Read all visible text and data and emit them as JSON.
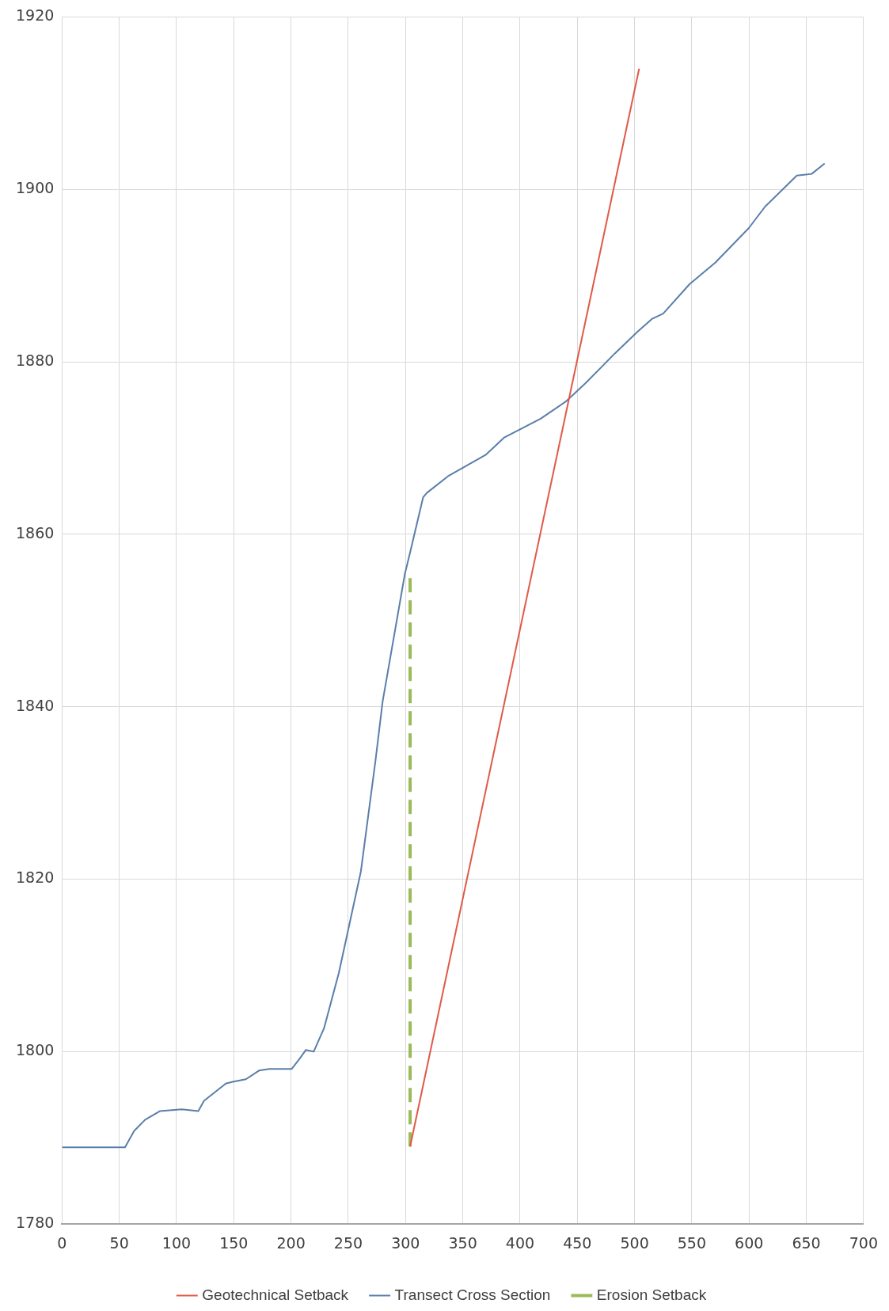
{
  "chart_data": {
    "type": "line",
    "xlim": [
      0,
      700
    ],
    "xticks": [
      0,
      50,
      100,
      150,
      200,
      250,
      300,
      350,
      400,
      450,
      500,
      550,
      600,
      650,
      700
    ],
    "ylim": [
      1780,
      1920
    ],
    "yticks": [
      1780,
      1800,
      1820,
      1840,
      1860,
      1880,
      1900,
      1920
    ],
    "grid": true,
    "legend": "bottom",
    "marker": "none",
    "series": [
      {
        "name": "Geotechnical Setback",
        "color": "#e05a47",
        "line_style": "solid",
        "x": [
          304,
          504
        ],
        "values": [
          1789,
          1914
        ]
      },
      {
        "name": "Transect Cross Section",
        "color": "#5a7eaa",
        "line_style": "solid",
        "x": [
          0,
          55,
          63,
          72.6,
          85.4,
          104.6,
          119,
          124,
          143,
          149,
          160.6,
          172,
          181,
          200.6,
          207.6,
          213,
          219.8,
          228.8,
          241.7,
          261,
          273.7,
          280,
          299.4,
          304,
          315.4,
          318.6,
          337.8,
          369.9,
          385.9,
          418,
          440,
          457,
          483,
          502.6,
          515.5,
          525,
          548,
          570.5,
          599.7,
          614,
          641.7,
          654.7,
          666
        ],
        "values": [
          1788.9,
          1788.9,
          1790.8,
          1792.1,
          1793.1,
          1793.3,
          1793.1,
          1794.3,
          1796.3,
          1796.5,
          1796.8,
          1797.8,
          1798,
          1798,
          1799.2,
          1800.2,
          1800,
          1802.7,
          1809.1,
          1820.9,
          1833.7,
          1840.6,
          1855.4,
          1857.9,
          1864.3,
          1864.8,
          1866.8,
          1869.2,
          1871.2,
          1873.4,
          1875.4,
          1877.5,
          1881,
          1883.5,
          1885,
          1885.6,
          1889,
          1891.5,
          1895.5,
          1898,
          1901.6,
          1901.8,
          1903
        ]
      },
      {
        "name": "Erosion Setback",
        "color": "#9bbb59",
        "line_style": "dashed",
        "x": [
          304,
          304
        ],
        "values": [
          1789,
          1855
        ]
      }
    ]
  }
}
